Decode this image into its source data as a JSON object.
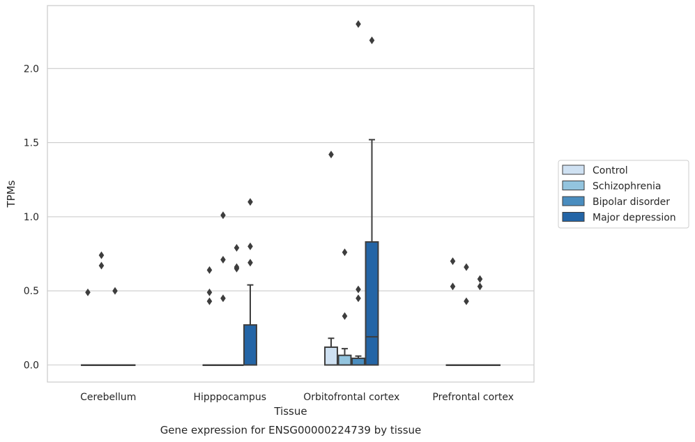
{
  "chart_data": {
    "type": "box",
    "caption": "Gene expression for ENSG00000224739 by tissue",
    "xlabel": "Tissue",
    "ylabel": "TPMs",
    "ylim": [
      -0.11,
      2.42
    ],
    "yticks": [
      0.0,
      0.5,
      1.0,
      1.5,
      2.0
    ],
    "ytick_labels": [
      "0.0",
      "0.5",
      "1.0",
      "1.5",
      "2.0"
    ],
    "grid": "horizontal",
    "legend_position": "right",
    "categories": [
      "Cerebellum",
      "Hipppocampus",
      "Orbitofrontal cortex",
      "Prefrontal cortex"
    ],
    "series": [
      {
        "name": "Control",
        "color": "#cfe1f2",
        "boxes": [
          {
            "q1": 0,
            "median": 0,
            "q3": 0,
            "whisker_low": 0,
            "whisker_high": 0,
            "outliers": [
              0.49
            ]
          },
          {
            "q1": 0,
            "median": 0,
            "q3": 0,
            "whisker_low": 0,
            "whisker_high": 0,
            "outliers": [
              0.43,
              0.49,
              0.64
            ]
          },
          {
            "q1": 0,
            "median": 0,
            "q3": 0.12,
            "whisker_low": 0,
            "whisker_high": 0.18,
            "outliers": [
              1.42
            ]
          },
          {
            "q1": 0,
            "median": 0,
            "q3": 0,
            "whisker_low": 0,
            "whisker_high": 0,
            "outliers": [
              0.53,
              0.7
            ]
          }
        ]
      },
      {
        "name": "Schizophrenia",
        "color": "#93c4de",
        "boxes": [
          {
            "q1": 0,
            "median": 0,
            "q3": 0,
            "whisker_low": 0,
            "whisker_high": 0,
            "outliers": [
              0.67,
              0.74
            ]
          },
          {
            "q1": 0,
            "median": 0,
            "q3": 0,
            "whisker_low": 0,
            "whisker_high": 0,
            "outliers": [
              0.45,
              0.71,
              1.01
            ]
          },
          {
            "q1": 0,
            "median": 0,
            "q3": 0.065,
            "whisker_low": 0,
            "whisker_high": 0.11,
            "outliers": [
              0.33,
              0.76
            ]
          },
          {
            "q1": 0,
            "median": 0,
            "q3": 0,
            "whisker_low": 0,
            "whisker_high": 0,
            "outliers": [
              0.43,
              0.66
            ]
          }
        ]
      },
      {
        "name": "Bipolar disorder",
        "color": "#4a8dbf",
        "boxes": [
          {
            "q1": 0,
            "median": 0,
            "q3": 0,
            "whisker_low": 0,
            "whisker_high": 0,
            "outliers": [
              0.5
            ]
          },
          {
            "q1": 0,
            "median": 0,
            "q3": 0,
            "whisker_low": 0,
            "whisker_high": 0,
            "outliers": [
              0.65,
              0.66,
              0.79
            ]
          },
          {
            "q1": 0,
            "median": 0,
            "q3": 0.045,
            "whisker_low": 0,
            "whisker_high": 0.06,
            "outliers": [
              0.45,
              0.51,
              2.3
            ]
          },
          {
            "q1": 0,
            "median": 0,
            "q3": 0,
            "whisker_low": 0,
            "whisker_high": 0,
            "outliers": [
              0.53,
              0.58
            ]
          }
        ]
      },
      {
        "name": "Major depression",
        "color": "#2465a6",
        "boxes": [
          {
            "q1": 0,
            "median": 0,
            "q3": 0,
            "whisker_low": 0,
            "whisker_high": 0,
            "outliers": []
          },
          {
            "q1": 0,
            "median": 0,
            "q3": 0.27,
            "whisker_low": 0,
            "whisker_high": 0.54,
            "outliers": [
              0.69,
              0.8,
              1.1
            ]
          },
          {
            "q1": 0,
            "median": 0.19,
            "q3": 0.83,
            "whisker_low": 0,
            "whisker_high": 1.52,
            "outliers": [
              2.19
            ]
          },
          {
            "q1": 0,
            "median": 0,
            "q3": 0,
            "whisker_low": 0,
            "whisker_high": 0,
            "outliers": []
          }
        ]
      }
    ]
  }
}
